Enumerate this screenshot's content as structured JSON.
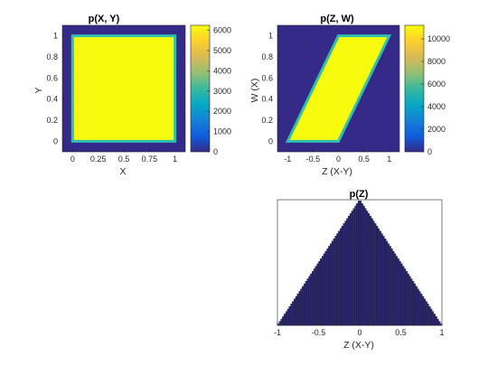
{
  "figure_background": "#ffffff",
  "chart_data": [
    {
      "type": "heatmap",
      "title": "p(X, Y)",
      "xlabel": "X",
      "ylabel": "Y",
      "xlim": [
        -0.1,
        1.1
      ],
      "ylim": [
        -0.1,
        1.1
      ],
      "x_ticks": [
        0,
        0.25,
        0.5,
        0.75,
        1
      ],
      "x_tick_labels": [
        "0",
        "0.25",
        "0.5",
        "0.75",
        "1"
      ],
      "y_ticks": [
        0,
        0.2,
        0.4,
        0.6,
        0.8,
        1
      ],
      "y_tick_labels": [
        "0",
        "0.2",
        "0.4",
        "0.6",
        "0.8",
        "1"
      ],
      "region": {
        "shape": "square",
        "vertices": [
          [
            0,
            0
          ],
          [
            1,
            0
          ],
          [
            1,
            1
          ],
          [
            0,
            1
          ]
        ]
      },
      "region_value": 6000,
      "background_value": 0,
      "colorbar": {
        "min": 0,
        "max": 6250,
        "ticks": [
          0,
          1000,
          2000,
          3000,
          4000,
          5000,
          6000
        ],
        "tick_labels": [
          "0",
          "1000",
          "2000",
          "3000",
          "4000",
          "5000",
          "6000"
        ]
      },
      "colormap": "parula"
    },
    {
      "type": "heatmap",
      "title": "p(Z, W)",
      "xlabel": "Z (X-Y)",
      "ylabel": "W (X)",
      "xlim": [
        -1.2,
        1.2
      ],
      "ylim": [
        -0.1,
        1.1
      ],
      "x_ticks": [
        -1,
        -0.5,
        0,
        0.5,
        1
      ],
      "x_tick_labels": [
        "-1",
        "-0.5",
        "0",
        "0.5",
        "1"
      ],
      "y_ticks": [
        0,
        0.2,
        0.4,
        0.6,
        0.8,
        1
      ],
      "y_tick_labels": [
        "0",
        "0.2",
        "0.4",
        "0.6",
        "0.8",
        "1"
      ],
      "region": {
        "shape": "parallelogram",
        "vertices": [
          [
            -1,
            0
          ],
          [
            0,
            0
          ],
          [
            1,
            1
          ],
          [
            0,
            1
          ]
        ]
      },
      "region_value": 11000,
      "background_value": 0,
      "colorbar": {
        "min": 0,
        "max": 11200,
        "ticks": [
          0,
          2000,
          4000,
          6000,
          8000,
          10000
        ],
        "tick_labels": [
          "0",
          "2000",
          "4000",
          "6000",
          "8000",
          "10000"
        ]
      },
      "colormap": "parula"
    },
    {
      "type": "bar",
      "title": "p(Z)",
      "xlabel": "Z (X-Y)",
      "ylabel": "",
      "xlim": [
        -1,
        1
      ],
      "ylim": [
        0,
        1
      ],
      "x_ticks": [
        -1,
        -0.5,
        0,
        0.5,
        1
      ],
      "x_tick_labels": [
        "-1",
        "-0.5",
        "0",
        "0.5",
        "1"
      ],
      "shape": "triangular",
      "x": [
        -1,
        0,
        1
      ],
      "values": [
        0,
        1,
        0
      ],
      "bar_count": 100,
      "bar_color": "#2d2a6e",
      "bar_edge_color": "#15133f"
    }
  ]
}
